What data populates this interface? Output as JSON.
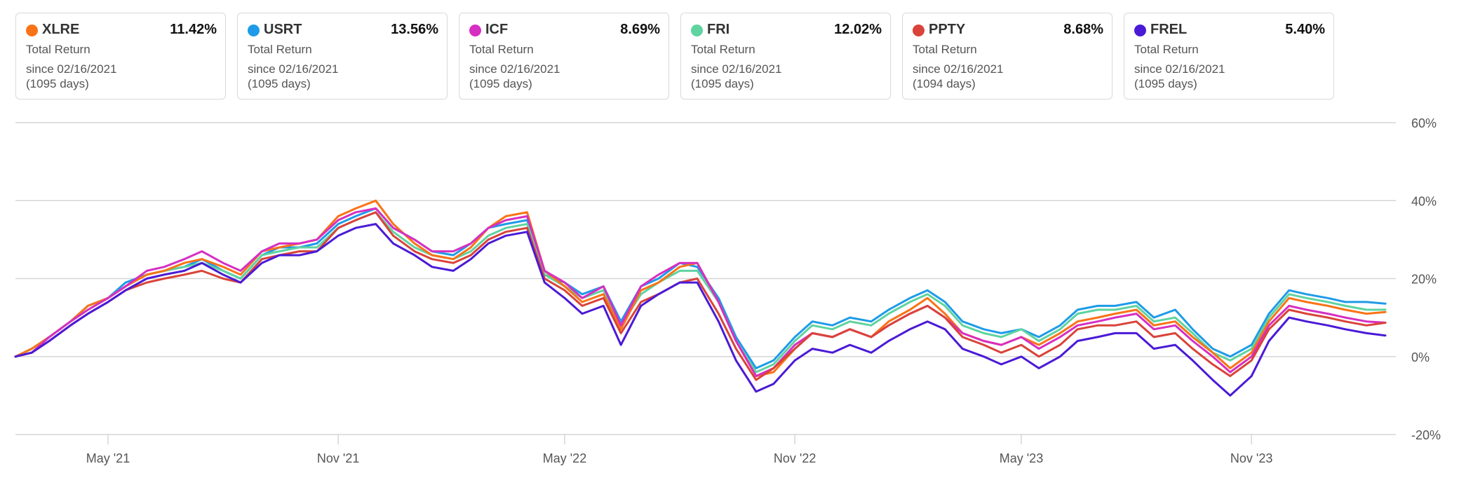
{
  "legend_cards": [
    {
      "ticker": "XLRE",
      "return": "11.42%",
      "label": "Total Return",
      "since": "since 02/16/2021",
      "days": "(1095 days)",
      "color": "#f97316"
    },
    {
      "ticker": "USRT",
      "return": "13.56%",
      "label": "Total Return",
      "since": "since 02/16/2021",
      "days": "(1095 days)",
      "color": "#1e9be8"
    },
    {
      "ticker": "ICF",
      "return": "8.69%",
      "label": "Total Return",
      "since": "since 02/16/2021",
      "days": "(1095 days)",
      "color": "#d62fc2"
    },
    {
      "ticker": "FRI",
      "return": "12.02%",
      "label": "Total Return",
      "since": "since 02/16/2021",
      "days": "(1095 days)",
      "color": "#5fd3a0"
    },
    {
      "ticker": "PPTY",
      "return": "8.68%",
      "label": "Total Return",
      "since": "since 02/16/2021",
      "days": "(1094 days)",
      "color": "#d9433a"
    },
    {
      "ticker": "FREL",
      "return": "5.40%",
      "label": "Total Return",
      "since": "since 02/16/2021",
      "days": "(1095 days)",
      "color": "#4a1ad6"
    }
  ],
  "chart_data": {
    "type": "line",
    "title": "",
    "xlabel": "",
    "ylabel": "",
    "ylim": [
      -20,
      60
    ],
    "yticks": [
      60,
      40,
      20,
      0,
      -20
    ],
    "ytick_labels": [
      "60%",
      "40%",
      "20%",
      "0%",
      "-20%"
    ],
    "xlim": [
      "2021-02-16",
      "2024-02-16"
    ],
    "xticks": [
      "2021-05-01",
      "2021-11-01",
      "2022-05-01",
      "2022-11-01",
      "2023-05-01",
      "2023-11-01"
    ],
    "xtick_labels": [
      "May '21",
      "Nov '21",
      "May '22",
      "Nov '22",
      "May '23",
      "Nov '23"
    ],
    "grid": true,
    "x": [
      "2021-02-16",
      "2021-03-01",
      "2021-03-15",
      "2021-04-01",
      "2021-04-15",
      "2021-05-01",
      "2021-05-15",
      "2021-06-01",
      "2021-06-15",
      "2021-07-01",
      "2021-07-15",
      "2021-08-01",
      "2021-08-15",
      "2021-09-01",
      "2021-09-15",
      "2021-10-01",
      "2021-10-15",
      "2021-11-01",
      "2021-11-15",
      "2021-12-01",
      "2021-12-15",
      "2022-01-01",
      "2022-01-15",
      "2022-02-01",
      "2022-02-15",
      "2022-03-01",
      "2022-03-15",
      "2022-04-01",
      "2022-04-15",
      "2022-05-01",
      "2022-05-15",
      "2022-06-01",
      "2022-06-15",
      "2022-07-01",
      "2022-07-15",
      "2022-08-01",
      "2022-08-15",
      "2022-09-01",
      "2022-09-15",
      "2022-10-01",
      "2022-10-15",
      "2022-11-01",
      "2022-11-15",
      "2022-12-01",
      "2022-12-15",
      "2023-01-01",
      "2023-01-15",
      "2023-02-01",
      "2023-02-15",
      "2023-03-01",
      "2023-03-15",
      "2023-04-01",
      "2023-04-15",
      "2023-05-01",
      "2023-05-15",
      "2023-06-01",
      "2023-06-15",
      "2023-07-01",
      "2023-07-15",
      "2023-08-01",
      "2023-08-15",
      "2023-09-01",
      "2023-09-15",
      "2023-10-01",
      "2023-10-15",
      "2023-11-01",
      "2023-11-15",
      "2023-12-01",
      "2023-12-15",
      "2024-01-01",
      "2024-01-15",
      "2024-02-01",
      "2024-02-16"
    ],
    "series": [
      {
        "name": "XLRE",
        "color": "#f97316",
        "values": [
          0,
          2,
          5,
          9,
          13,
          15,
          18,
          21,
          22,
          24,
          25,
          23,
          21,
          27,
          28,
          29,
          30,
          36,
          38,
          40,
          34,
          29,
          26,
          25,
          28,
          33,
          36,
          37,
          22,
          18,
          14,
          16,
          7,
          17,
          19,
          23,
          24,
          14,
          4,
          -5,
          -4,
          2,
          6,
          5,
          7,
          5,
          9,
          12,
          15,
          11,
          6,
          4,
          3,
          5,
          3,
          6,
          9,
          10,
          11,
          12,
          8,
          9,
          5,
          1,
          -3,
          1,
          9,
          15,
          14,
          13,
          12,
          11,
          11.42
        ]
      },
      {
        "name": "USRT",
        "color": "#1e9be8",
        "values": [
          0,
          2,
          5,
          9,
          13,
          15,
          19,
          21,
          22,
          23,
          25,
          22,
          20,
          26,
          28,
          28,
          29,
          34,
          36,
          38,
          33,
          30,
          27,
          26,
          29,
          33,
          34,
          35,
          21,
          19,
          16,
          18,
          9,
          18,
          20,
          24,
          23,
          15,
          5,
          -3,
          -1,
          5,
          9,
          8,
          10,
          9,
          12,
          15,
          17,
          14,
          9,
          7,
          6,
          7,
          5,
          8,
          12,
          13,
          13,
          14,
          10,
          12,
          7,
          2,
          0,
          3,
          11,
          17,
          16,
          15,
          14,
          14,
          13.56
        ]
      },
      {
        "name": "ICF",
        "color": "#d62fc2",
        "values": [
          0,
          1,
          5,
          9,
          12,
          15,
          18,
          22,
          23,
          25,
          27,
          24,
          22,
          27,
          29,
          29,
          30,
          35,
          37,
          38,
          33,
          30,
          27,
          27,
          29,
          33,
          35,
          36,
          22,
          19,
          15,
          18,
          8,
          18,
          21,
          24,
          24,
          14,
          4,
          -5,
          -3,
          3,
          6,
          5,
          7,
          5,
          8,
          11,
          13,
          10,
          6,
          4,
          3,
          5,
          2,
          5,
          8,
          9,
          10,
          11,
          7,
          8,
          4,
          0,
          -4,
          0,
          8,
          13,
          12,
          11,
          10,
          9,
          8.69
        ]
      },
      {
        "name": "FRI",
        "color": "#5fd3a0",
        "values": [
          0,
          2,
          5,
          9,
          12,
          15,
          18,
          21,
          22,
          23,
          24,
          22,
          20,
          26,
          27,
          28,
          28,
          33,
          35,
          37,
          32,
          28,
          26,
          25,
          27,
          31,
          33,
          34,
          21,
          18,
          15,
          17,
          8,
          16,
          19,
          22,
          22,
          14,
          4,
          -4,
          -2,
          4,
          8,
          7,
          9,
          8,
          11,
          14,
          16,
          13,
          8,
          6,
          5,
          7,
          4,
          7,
          11,
          12,
          12,
          13,
          9,
          10,
          6,
          1,
          -1,
          2,
          10,
          16,
          15,
          14,
          13,
          12,
          12.02
        ]
      },
      {
        "name": "PPTY",
        "color": "#d9433a",
        "values": [
          0,
          1,
          4,
          8,
          11,
          14,
          17,
          19,
          20,
          21,
          22,
          20,
          19,
          25,
          26,
          27,
          27,
          33,
          35,
          37,
          31,
          27,
          25,
          24,
          26,
          30,
          32,
          33,
          20,
          17,
          13,
          15,
          6,
          14,
          16,
          19,
          20,
          11,
          2,
          -6,
          -3,
          2,
          6,
          5,
          7,
          5,
          8,
          11,
          13,
          10,
          5,
          3,
          1,
          3,
          0,
          3,
          7,
          8,
          8,
          9,
          5,
          6,
          2,
          -2,
          -5,
          -1,
          7,
          12,
          11,
          10,
          9,
          8,
          8.68
        ]
      },
      {
        "name": "FREL",
        "color": "#4a1ad6",
        "values": [
          0,
          1,
          4,
          8,
          11,
          14,
          17,
          20,
          21,
          22,
          24,
          21,
          19,
          24,
          26,
          26,
          27,
          31,
          33,
          34,
          29,
          26,
          23,
          22,
          25,
          29,
          31,
          32,
          19,
          15,
          11,
          13,
          3,
          13,
          16,
          19,
          19,
          9,
          -1,
          -9,
          -7,
          -1,
          2,
          1,
          3,
          1,
          4,
          7,
          9,
          7,
          2,
          0,
          -2,
          0,
          -3,
          0,
          4,
          5,
          6,
          6,
          2,
          3,
          -1,
          -6,
          -10,
          -5,
          4,
          10,
          9,
          8,
          7,
          6,
          5.4
        ]
      }
    ]
  }
}
